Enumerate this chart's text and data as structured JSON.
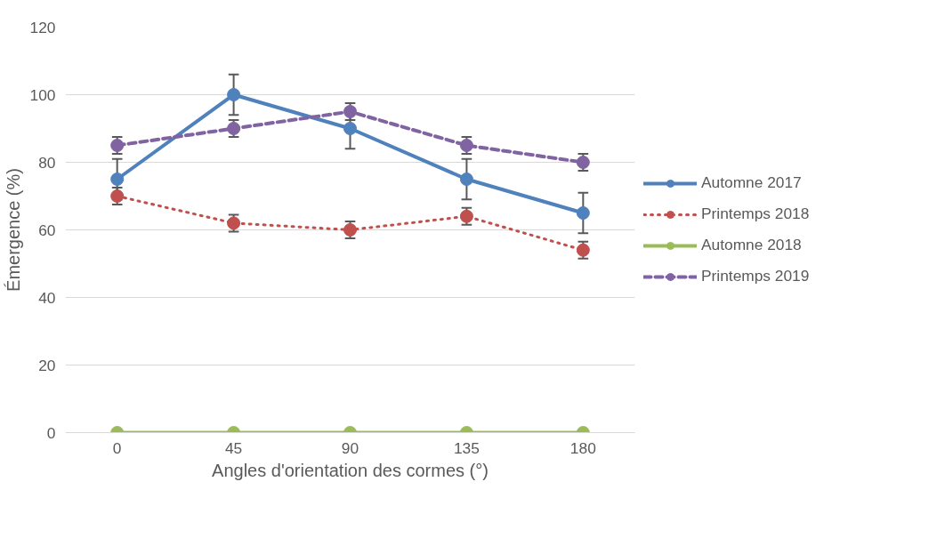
{
  "chart_data": {
    "type": "line",
    "xlabel": "Angles d'orientation des cormes (°)",
    "ylabel": "Émergence (%)",
    "x": [
      0,
      45,
      90,
      135,
      180
    ],
    "xlim": [
      -20,
      200
    ],
    "xticks": [
      0,
      45,
      90,
      135,
      180
    ],
    "ylim": [
      0,
      120
    ],
    "yticks": [
      0,
      20,
      40,
      60,
      80,
      100,
      120
    ],
    "grid": "y",
    "legend": "right",
    "marker": "circle",
    "series": [
      {
        "name": "Automne 2017",
        "color": "#4f81bd",
        "line_style": "solid",
        "values": [
          75,
          100,
          90,
          75,
          65
        ],
        "errors": [
          6,
          6,
          6,
          6,
          6
        ]
      },
      {
        "name": "Printemps 2018",
        "color": "#c0504d",
        "line_style": "dotted",
        "values": [
          70,
          62,
          60,
          64,
          54
        ],
        "errors": [
          2.5,
          2.5,
          2.5,
          2.5,
          2.5
        ]
      },
      {
        "name": "Automne 2018",
        "color": "#9bbb59",
        "line_style": "solid",
        "values": [
          0,
          0,
          0,
          0,
          0
        ]
      },
      {
        "name": "Printemps 2019",
        "color": "#8064a2",
        "line_style": "dashed",
        "values": [
          85,
          90,
          95,
          85,
          80
        ],
        "errors": [
          2.5,
          2.5,
          2.5,
          2.5,
          2.5
        ]
      }
    ]
  }
}
